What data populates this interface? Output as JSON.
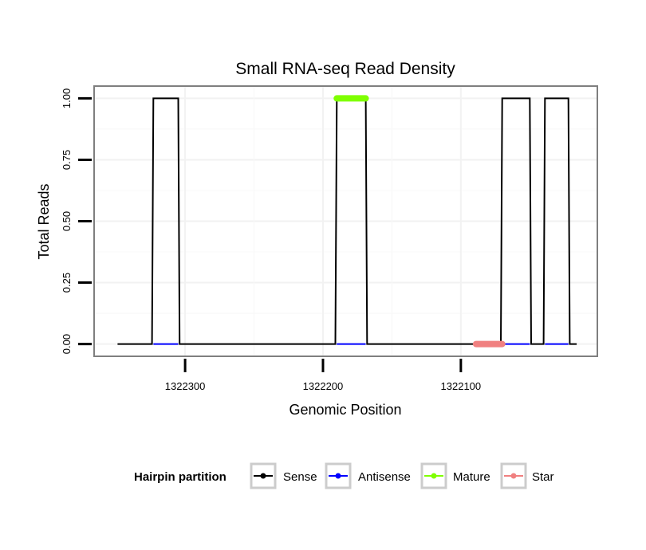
{
  "chart_data": {
    "type": "line",
    "title": "Small RNA-seq Read Density",
    "xlabel": "Genomic Position",
    "ylabel": "Total Reads",
    "x_reversed": true,
    "xlim": [
      1322366,
      1322001
    ],
    "ylim": [
      -0.05,
      1.05
    ],
    "x_ticks": [
      1322300,
      1322200,
      1322100
    ],
    "x_tick_labels": [
      "1322300",
      "1322200",
      "1322100"
    ],
    "y_ticks": [
      0,
      0.25,
      0.5,
      0.75,
      1.0
    ],
    "y_tick_labels": [
      "0.00",
      "0.25",
      "0.50",
      "0.75",
      "1.00"
    ],
    "grid": true,
    "legend": {
      "title": "Hairpin partition",
      "placement": "bottom",
      "entries": [
        {
          "label": "Sense",
          "color": "#000000"
        },
        {
          "label": "Antisense",
          "color": "#0000ff"
        },
        {
          "label": "Mature",
          "color": "#7fff00"
        },
        {
          "label": "Star",
          "color": "#f08080"
        }
      ]
    },
    "series": [
      {
        "name": "Sense",
        "color": "#000000",
        "x": [
          1322349,
          1322324,
          1322323,
          1322305,
          1322304,
          1322191,
          1322190,
          1322169,
          1322168,
          1322071,
          1322070,
          1322050,
          1322049,
          1322040,
          1322039,
          1322022,
          1322021,
          1322016
        ],
        "y": [
          0,
          0,
          1,
          1,
          0,
          0,
          1,
          1,
          0,
          0,
          1,
          1,
          0,
          0,
          1,
          1,
          0,
          0
        ]
      },
      {
        "name": "Antisense",
        "color": "#0000ff",
        "segments": [
          {
            "x": [
              1322323,
              1322305
            ],
            "y": [
              0,
              0
            ]
          },
          {
            "x": [
              1322190,
              1322169
            ],
            "y": [
              0,
              0
            ]
          },
          {
            "x": [
              1322070,
              1322050
            ],
            "y": [
              0,
              0
            ]
          },
          {
            "x": [
              1322039,
              1322022
            ],
            "y": [
              0,
              0
            ]
          }
        ]
      },
      {
        "name": "Mature",
        "color": "#7fff00",
        "segments": [
          {
            "x": [
              1322190,
              1322169
            ],
            "y": [
              1,
              1
            ]
          }
        ]
      },
      {
        "name": "Star",
        "color": "#f08080",
        "segments": [
          {
            "x": [
              1322089,
              1322070
            ],
            "y": [
              0,
              0
            ]
          }
        ]
      }
    ]
  }
}
